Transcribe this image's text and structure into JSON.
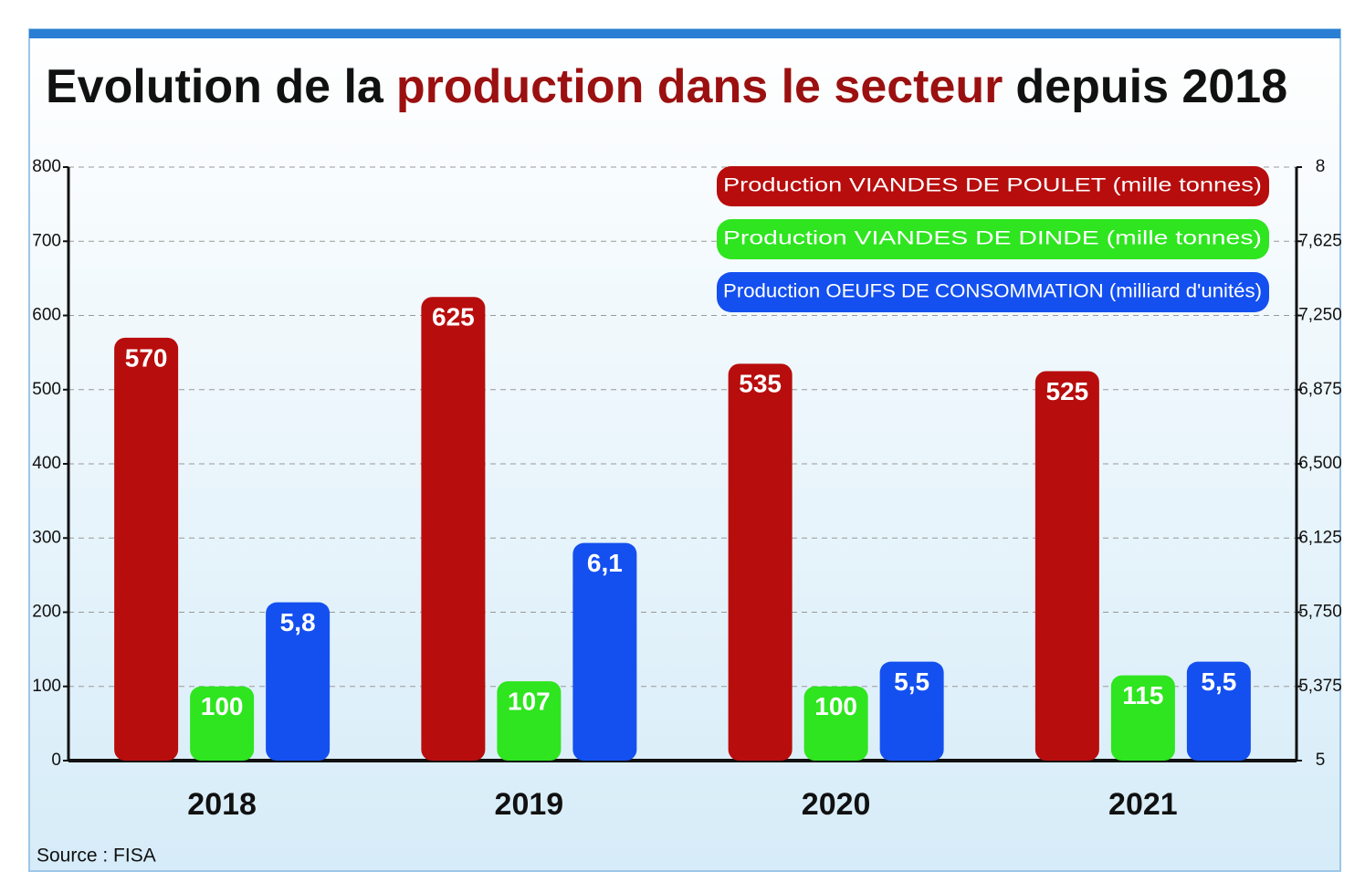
{
  "chart_data": {
    "type": "bar",
    "title": [
      "Evolution de la",
      "production dans le secteur",
      "depuis 2018"
    ],
    "categories": [
      "2018",
      "2019",
      "2020",
      "2021"
    ],
    "series": [
      {
        "name": "Production VIANDES DE POULET (mille tonnes)",
        "color": "#b80d0d",
        "values": [
          570,
          625,
          535,
          525
        ]
      },
      {
        "name": "Production VIANDES DE DINDE (mille tonnes)",
        "color": "#2ee51f",
        "values": [
          100,
          107,
          100,
          115
        ]
      },
      {
        "name": "Production OEUFS DE CONSOMMATION (milliard d'unités)",
        "color": "#1450f0",
        "axis": "y2",
        "values": [
          5.8,
          6.1,
          5.5,
          5.5
        ],
        "value_labels": [
          "5,8",
          "6,1",
          "5,5",
          "5,5"
        ]
      }
    ],
    "ylim": [
      0,
      800
    ],
    "yticks": [
      0,
      100,
      200,
      300,
      400,
      500,
      600,
      700,
      800
    ],
    "y2lim": [
      5,
      8
    ],
    "y2ticks": [
      5,
      {
        "value": 5.375,
        "label": "5,375"
      },
      {
        "value": 5.75,
        "label": "5,750"
      },
      {
        "value": 6.125,
        "label": "6,125"
      },
      {
        "value": 6.5,
        "label": "6,500"
      },
      {
        "value": 6.875,
        "label": "6,875"
      },
      {
        "value": 7.25,
        "label": "7,250"
      },
      {
        "value": 7.625,
        "label": "7,625"
      },
      8
    ],
    "grid": true,
    "legend": "top-right",
    "source": "Source : FISA"
  }
}
